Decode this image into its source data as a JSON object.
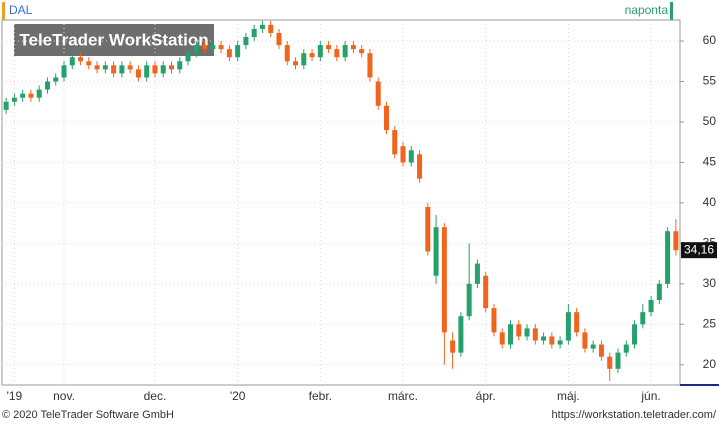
{
  "chart_data": {
    "type": "candlestick",
    "symbol": "DAL",
    "interval": "naponta",
    "watermark": "TeleTrader WorkStation",
    "footer_left": "© 2020 TeleTrader Software GmbH",
    "footer_right": "https://workstation.teletrader.com/",
    "last_price": {
      "value": 34.16,
      "label": "34,16"
    },
    "up_color": "#27a06c",
    "down_color": "#f0641e",
    "grid": true,
    "categories": [
      null,
      "'19",
      null,
      null,
      null,
      null,
      null,
      "nov.",
      null,
      null,
      null,
      null,
      null,
      null,
      null,
      null,
      null,
      null,
      "dec.",
      null,
      null,
      null,
      null,
      null,
      null,
      null,
      null,
      null,
      "'20",
      null,
      null,
      null,
      null,
      null,
      null,
      null,
      null,
      null,
      "febr.",
      null,
      null,
      null,
      null,
      null,
      null,
      null,
      null,
      null,
      "márc.",
      null,
      null,
      null,
      null,
      null,
      null,
      null,
      null,
      null,
      "ápr.",
      null,
      null,
      null,
      null,
      null,
      null,
      null,
      null,
      null,
      "máj.",
      null,
      null,
      null,
      null,
      null,
      null,
      null,
      null,
      null,
      "jún.",
      null,
      null,
      null
    ],
    "open": [
      51.5,
      52.5,
      53,
      53.5,
      53,
      54,
      55,
      55.5,
      57,
      58,
      57.5,
      57,
      56.5,
      57,
      56,
      57,
      56.5,
      55.5,
      57,
      56,
      57,
      56.5,
      57.5,
      58.5,
      59.5,
      59,
      59.5,
      59,
      58,
      59.5,
      60.5,
      61.5,
      62,
      61,
      59.5,
      57.5,
      57,
      58.5,
      58,
      59.5,
      59,
      58,
      59.5,
      59,
      58.5,
      55,
      52,
      49,
      47,
      45,
      46,
      39.5,
      31,
      37,
      23,
      21.5,
      26,
      30,
      31,
      27,
      24,
      22.5,
      25,
      23.5,
      24.5,
      23,
      23.5,
      22.5,
      23,
      26.5,
      24,
      22,
      22.5,
      21,
      19.5,
      21.5,
      22.5,
      25,
      26.5,
      28,
      30,
      36.5
    ],
    "high": [
      53,
      53.5,
      54,
      54,
      54.5,
      55.5,
      56,
      57.5,
      58.5,
      58.5,
      58,
      57.5,
      57.5,
      57.5,
      57.5,
      57.5,
      57,
      57.5,
      57.5,
      57.5,
      57.5,
      58,
      59,
      60,
      60,
      60,
      60,
      59.5,
      60,
      61,
      62,
      62.5,
      62.5,
      61.5,
      60,
      58,
      59,
      59,
      60,
      60,
      59.5,
      60,
      60,
      59.5,
      59,
      55.5,
      52.5,
      49.5,
      47.5,
      47,
      46.5,
      40,
      38.5,
      37.5,
      24,
      26.5,
      35,
      33,
      31.5,
      27.5,
      24.5,
      25.5,
      25.5,
      25,
      25,
      24,
      24,
      23.5,
      27.5,
      27,
      24.5,
      23,
      23,
      21.5,
      22,
      23,
      25.5,
      27.5,
      28.5,
      30.5,
      37,
      38
    ],
    "low": [
      51,
      52,
      52.5,
      52.5,
      52.5,
      53.5,
      54.5,
      55,
      56.5,
      57,
      56.5,
      56,
      56,
      55.5,
      55.5,
      56,
      55,
      55,
      55.5,
      55.5,
      56,
      56,
      57,
      58,
      58.5,
      58.5,
      58.5,
      57.5,
      57.5,
      59,
      60,
      61,
      60.5,
      59,
      57,
      56.5,
      56.5,
      57.5,
      57.5,
      58.5,
      57.5,
      57.5,
      58.5,
      58,
      55,
      51.5,
      48.5,
      45.5,
      44.5,
      44.5,
      42.5,
      33.5,
      30,
      20,
      19.5,
      21,
      25.5,
      29.5,
      26.5,
      23.5,
      22,
      22,
      23,
      23,
      22.5,
      22.5,
      22,
      22,
      22.5,
      23.5,
      21.5,
      21.5,
      20.5,
      18,
      19,
      21,
      22,
      24.5,
      26,
      27.5,
      29.5,
      33.5
    ],
    "close": [
      52.5,
      53,
      53.5,
      53,
      54,
      55,
      55.5,
      57,
      58,
      57.5,
      57,
      56.5,
      57,
      56,
      57,
      56.5,
      55.5,
      57,
      56,
      57,
      56.5,
      57.5,
      58.5,
      59.5,
      59,
      59.5,
      59,
      58,
      59.5,
      60.5,
      61.5,
      62,
      61,
      59.5,
      57.5,
      57,
      58.5,
      58,
      59.5,
      59,
      58,
      59.5,
      59,
      58.5,
      55.5,
      52,
      49,
      46,
      45,
      46.5,
      43,
      34,
      37,
      24,
      21.5,
      26,
      30,
      32.5,
      27,
      24,
      22.5,
      25,
      23.5,
      24.5,
      23,
      23.5,
      22.5,
      23,
      26.5,
      24,
      22,
      22.5,
      21,
      19.5,
      21.5,
      22.5,
      25,
      26.5,
      28,
      30,
      36.5,
      34.16
    ],
    "ylim": [
      17.5,
      62.6
    ],
    "yticks": [
      20,
      25,
      30,
      35,
      40,
      45,
      50,
      55,
      60
    ]
  }
}
